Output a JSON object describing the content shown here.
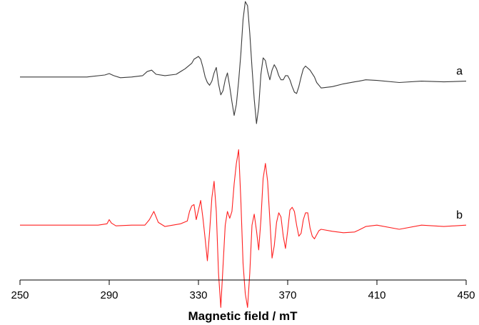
{
  "chart_data": {
    "type": "line",
    "title": "",
    "xlabel": "Magnetic field / mT",
    "ylabel": "",
    "xlim": [
      250,
      450
    ],
    "ylim": [
      -10,
      10
    ],
    "grid": false,
    "legend": "none",
    "xticks": [
      "250",
      "290",
      "330",
      "370",
      "410",
      "450"
    ],
    "series": [
      {
        "name": "a",
        "color": "#3a3a3a",
        "x": [
          250,
          280,
          288,
          290,
          292,
          295,
          300,
          305,
          307,
          309,
          311,
          315,
          320,
          324,
          327,
          328,
          330,
          331,
          332,
          333,
          334,
          335,
          336,
          337,
          338,
          339,
          340,
          341,
          342,
          343,
          344,
          345,
          346,
          347,
          348,
          349,
          350,
          351,
          352,
          353,
          354,
          355,
          356,
          357,
          358,
          359,
          360,
          361,
          362,
          363,
          364,
          365,
          366,
          367,
          368,
          369,
          370,
          371,
          372,
          373,
          374,
          375,
          376,
          377,
          378,
          380,
          382,
          383,
          385,
          390,
          395,
          400,
          402,
          405,
          410,
          420,
          430,
          440,
          450
        ],
        "values": [
          4.8,
          4.8,
          4.95,
          5.05,
          4.9,
          4.75,
          4.8,
          4.9,
          5.2,
          5.3,
          5.0,
          4.9,
          5.0,
          5.4,
          5.8,
          6.1,
          6.3,
          6.1,
          5.5,
          4.8,
          4.4,
          4.2,
          4.5,
          5.1,
          5.5,
          4.3,
          3.5,
          3.8,
          4.6,
          5.1,
          4.1,
          3.0,
          2.0,
          2.8,
          4.5,
          6.5,
          9.0,
          10.3,
          10.0,
          8.0,
          5.5,
          3.2,
          1.4,
          2.6,
          5.0,
          6.2,
          6.0,
          5.2,
          4.6,
          5.3,
          5.7,
          5.4,
          4.9,
          4.6,
          4.6,
          4.9,
          4.9,
          4.6,
          4.1,
          3.7,
          3.6,
          4.1,
          4.8,
          5.4,
          5.6,
          5.3,
          4.8,
          4.4,
          4.0,
          4.1,
          4.3,
          4.45,
          4.5,
          4.6,
          4.55,
          4.4,
          4.5,
          4.45,
          4.5
        ]
      },
      {
        "name": "b",
        "color": "#ff2020",
        "x": [
          250,
          285,
          289,
          290,
          291,
          293,
          300,
          306,
          308,
          310,
          312,
          315,
          322,
          325,
          326,
          327,
          328,
          329,
          330,
          331,
          332,
          333,
          334,
          335,
          336,
          337,
          338,
          339,
          340,
          341,
          342,
          343,
          344,
          345,
          346,
          347,
          348,
          349,
          350,
          351,
          352,
          353,
          354,
          355,
          356,
          357,
          358,
          359,
          360,
          361,
          362,
          363,
          364,
          365,
          366,
          367,
          368,
          369,
          370,
          371,
          372,
          373,
          374,
          375,
          376,
          377,
          378,
          379,
          380,
          381,
          382,
          383,
          384,
          385,
          390,
          395,
          400,
          402,
          405,
          410,
          420,
          430,
          440,
          450
        ],
        "values": [
          -6.0,
          -6.0,
          -5.9,
          -5.6,
          -5.85,
          -6.05,
          -6.0,
          -6.0,
          -5.6,
          -5.0,
          -5.8,
          -6.1,
          -5.9,
          -5.7,
          -5.0,
          -4.6,
          -4.5,
          -5.6,
          -4.9,
          -4.2,
          -5.5,
          -7.0,
          -8.6,
          -6.5,
          -4.0,
          -2.8,
          -5.0,
          -9.5,
          -12.0,
          -9.0,
          -6.0,
          -5.0,
          -5.5,
          -5.0,
          -3.0,
          -1.5,
          -0.5,
          -4.2,
          -8.8,
          -11.0,
          -12.0,
          -9.5,
          -6.0,
          -5.2,
          -6.4,
          -7.8,
          -5.6,
          -2.6,
          -1.5,
          -2.8,
          -5.6,
          -8.4,
          -7.5,
          -5.8,
          -5.1,
          -5.4,
          -6.8,
          -7.7,
          -6.4,
          -4.9,
          -4.7,
          -5.0,
          -6.0,
          -6.8,
          -6.6,
          -5.6,
          -5.1,
          -5.1,
          -6.2,
          -6.8,
          -7.0,
          -6.7,
          -6.4,
          -6.3,
          -6.45,
          -6.55,
          -6.5,
          -6.35,
          -6.1,
          -6.0,
          -6.3,
          -6.0,
          -6.1,
          -6.0
        ]
      }
    ]
  }
}
